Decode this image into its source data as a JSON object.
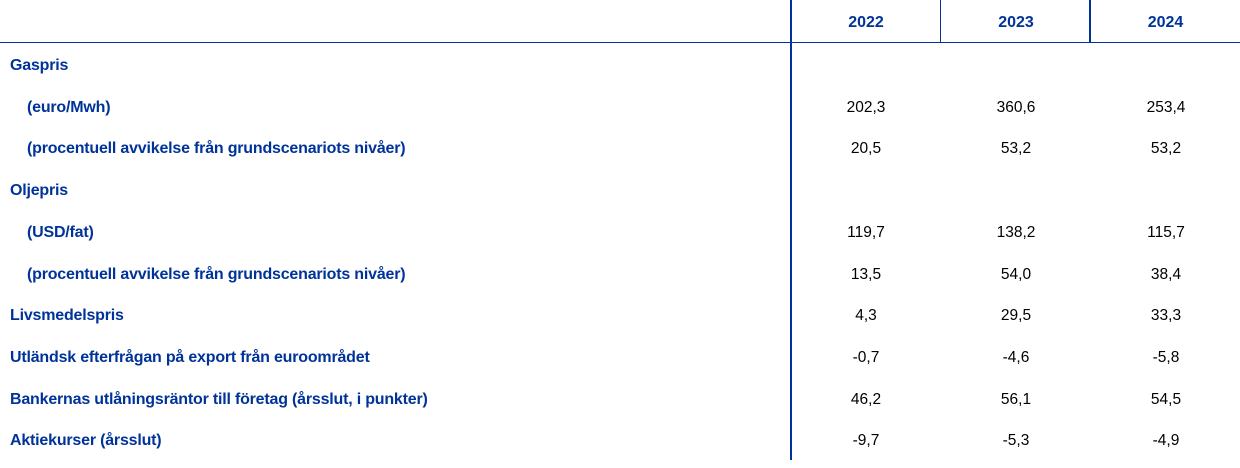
{
  "colors": {
    "accent": "#003399"
  },
  "table": {
    "columns": [
      "2022",
      "2023",
      "2024"
    ],
    "rows": [
      {
        "label": "Gaspris",
        "indent": false,
        "values": [
          "",
          "",
          ""
        ]
      },
      {
        "label": "(euro/Mwh)",
        "indent": true,
        "values": [
          "202,3",
          "360,6",
          "253,4"
        ]
      },
      {
        "label": "(procentuell avvikelse från grundscenariots nivåer)",
        "indent": true,
        "values": [
          "20,5",
          "53,2",
          "53,2"
        ]
      },
      {
        "label": "Oljepris",
        "indent": false,
        "values": [
          "",
          "",
          ""
        ]
      },
      {
        "label": "(USD/fat)",
        "indent": true,
        "values": [
          "119,7",
          "138,2",
          "115,7"
        ]
      },
      {
        "label": "(procentuell avvikelse från grundscenariots nivåer)",
        "indent": true,
        "values": [
          "13,5",
          "54,0",
          "38,4"
        ]
      },
      {
        "label": "Livsmedelspris",
        "indent": false,
        "values": [
          "4,3",
          "29,5",
          "33,3"
        ]
      },
      {
        "label": "Utländsk efterfrågan på export från euroområdet",
        "indent": false,
        "values": [
          "-0,7",
          "-4,6",
          "-5,8"
        ]
      },
      {
        "label": "Bankernas utlåningsräntor till företag (årsslut, i punkter)",
        "indent": false,
        "values": [
          "46,2",
          "56,1",
          "54,5"
        ]
      },
      {
        "label": "Aktiekurser (årsslut)",
        "indent": false,
        "values": [
          "-9,7",
          "-5,3",
          "-4,9"
        ]
      }
    ]
  }
}
